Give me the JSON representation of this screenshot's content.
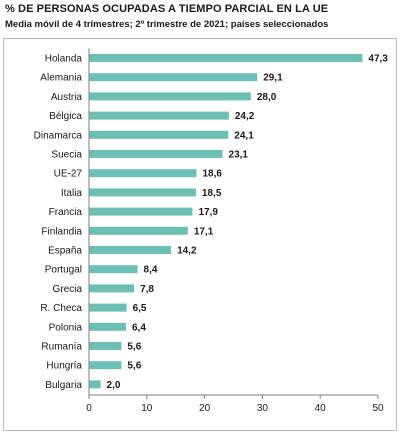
{
  "header": {
    "title": "% DE PERSONAS OCUPADAS A TIEMPO PARCIAL EN LA UE",
    "subtitle": "Media móvil de 4 trimestres; 2º trimestre de 2021; países seleccionados"
  },
  "colors": {
    "bar": "#6cbfb4",
    "axis": "#7f7f7f"
  },
  "chart_data": {
    "type": "bar",
    "orientation": "horizontal",
    "title": "% DE PERSONAS OCUPADAS A TIEMPO PARCIAL EN LA UE",
    "subtitle": "Media móvil de 4 trimestres; 2º trimestre de 2021; países seleccionados",
    "categories": [
      "Holanda",
      "Alemania",
      "Austria",
      "Bélgica",
      "Dinamarca",
      "Suecia",
      "UE-27",
      "Italia",
      "Francia",
      "Finlandia",
      "España",
      "Portugal",
      "Grecia",
      "R. Checa",
      "Polonia",
      "Rumanía",
      "Hungría",
      "Bulgaria"
    ],
    "values": [
      47.3,
      29.1,
      28.0,
      24.2,
      24.1,
      23.1,
      18.6,
      18.5,
      17.9,
      17.1,
      14.2,
      8.4,
      7.8,
      6.5,
      6.4,
      5.6,
      5.6,
      2.0
    ],
    "value_labels": [
      "47,3",
      "29,1",
      "28,0",
      "24,2",
      "24,1",
      "23,1",
      "18,6",
      "18,5",
      "17,9",
      "17,1",
      "14,2",
      "8,4",
      "7,8",
      "6,5",
      "6,4",
      "5,6",
      "5,6",
      "2,0"
    ],
    "xlim": [
      0,
      50
    ],
    "xticks": [
      0,
      10,
      20,
      30,
      40,
      50
    ],
    "xtick_labels": [
      "0",
      "10",
      "20",
      "30",
      "40",
      "50"
    ],
    "grid": false,
    "legend": "none",
    "xlabel": "",
    "ylabel": ""
  }
}
